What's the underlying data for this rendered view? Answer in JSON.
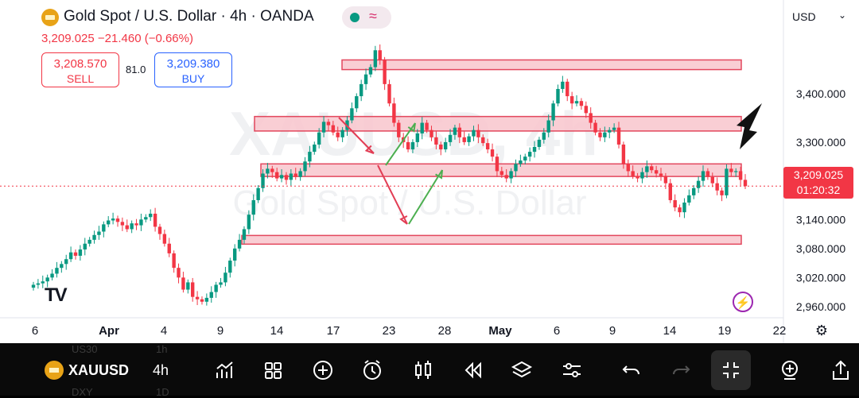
{
  "header": {
    "title": "Gold Spot / U.S. Dollar · 4h · OANDA",
    "price_change": "3,209.025 −21.460 (−0.66%)",
    "sell": {
      "price": "3,208.570",
      "label": "SELL"
    },
    "spread": "81.0",
    "buy": {
      "price": "3,209.380",
      "label": "BUY"
    },
    "currency": "USD"
  },
  "watermark": {
    "symbol": "XAUUSD, 4h",
    "name": "Gold Spot / U.S. Dollar"
  },
  "price_tag": {
    "price": "3,209.025",
    "countdown": "01:20:32"
  },
  "y_axis": [
    {
      "label": "3,400.000",
      "value": 3400
    },
    {
      "label": "3,300.000",
      "value": 3300
    },
    {
      "label": "3,140.000",
      "value": 3140
    },
    {
      "label": "3,080.000",
      "value": 3080
    },
    {
      "label": "3,020.000",
      "value": 3020
    },
    {
      "label": "2,960.000",
      "value": 2960
    }
  ],
  "x_axis": [
    {
      "label": "6",
      "bold": false
    },
    {
      "label": "Apr",
      "bold": true
    },
    {
      "label": "4",
      "bold": false
    },
    {
      "label": "9",
      "bold": false
    },
    {
      "label": "14",
      "bold": false
    },
    {
      "label": "17",
      "bold": false
    },
    {
      "label": "23",
      "bold": false
    },
    {
      "label": "28",
      "bold": false
    },
    {
      "label": "May",
      "bold": true
    },
    {
      "label": "6",
      "bold": false
    },
    {
      "label": "9",
      "bold": false
    },
    {
      "label": "14",
      "bold": false
    },
    {
      "label": "19",
      "bold": false
    },
    {
      "label": "22",
      "bold": false
    }
  ],
  "zones": [
    {
      "low": 3450,
      "high": 3470
    },
    {
      "low": 3323,
      "high": 3353
    },
    {
      "low": 3229,
      "high": 3255
    },
    {
      "low": 3089,
      "high": 3107
    }
  ],
  "colors": {
    "up": "#089981",
    "down": "#f23645",
    "zone_fill": "#f9c9d0",
    "zone_stroke": "#e0344c",
    "tag": "#f23645",
    "arrow_green": "#4caf50"
  },
  "chart_data": {
    "type": "candlestick",
    "title": "Gold Spot / U.S. Dollar · 4h · OANDA",
    "symbol": "XAUUSD",
    "timeframe": "4h",
    "ylim": [
      2945,
      3520
    ],
    "last_price": 3209.025,
    "closes": [
      3005,
      3008,
      3012,
      3020,
      3028,
      3040,
      3048,
      3058,
      3072,
      3065,
      3078,
      3090,
      3098,
      3108,
      3115,
      3130,
      3138,
      3142,
      3135,
      3128,
      3120,
      3132,
      3128,
      3140,
      3145,
      3152,
      3125,
      3110,
      3090,
      3070,
      3040,
      3020,
      2995,
      3010,
      2980,
      2975,
      2970,
      2978,
      2990,
      3005,
      3010,
      3030,
      3055,
      3080,
      3098,
      3120,
      3150,
      3180,
      3205,
      3235,
      3245,
      3238,
      3225,
      3232,
      3222,
      3235,
      3228,
      3240,
      3260,
      3280,
      3295,
      3320,
      3342,
      3335,
      3320,
      3310,
      3325,
      3345,
      3370,
      3395,
      3420,
      3440,
      3455,
      3490,
      3470,
      3420,
      3380,
      3340,
      3310,
      3300,
      3285,
      3300,
      3318,
      3340,
      3325,
      3310,
      3295,
      3285,
      3300,
      3315,
      3330,
      3310,
      3300,
      3312,
      3325,
      3310,
      3298,
      3285,
      3270,
      3240,
      3232,
      3225,
      3240,
      3255,
      3262,
      3270,
      3280,
      3290,
      3305,
      3320,
      3345,
      3380,
      3410,
      3425,
      3395,
      3380,
      3385,
      3375,
      3360,
      3340,
      3320,
      3310,
      3320,
      3325,
      3330,
      3295,
      3255,
      3240,
      3230,
      3225,
      3238,
      3250,
      3242,
      3235,
      3230,
      3215,
      3180,
      3165,
      3155,
      3175,
      3190,
      3205,
      3220,
      3240,
      3228,
      3215,
      3200,
      3190,
      3245,
      3238,
      3240,
      3222,
      3209
    ]
  },
  "toolbar": {
    "symbol": "XAUUSD",
    "timeframe": "4h",
    "ghost_rows": [
      "US30",
      "1h",
      "DXY",
      "1D"
    ],
    "icons": [
      "indicators-icon",
      "layouts-icon",
      "add-icon",
      "alert-icon",
      "chart-type-icon",
      "replay-icon",
      "layers-icon",
      "settings-sliders-icon",
      "undo-icon",
      "redo-icon",
      "fullscreen-exit-icon",
      "add-indicator-icon",
      "share-icon"
    ]
  }
}
